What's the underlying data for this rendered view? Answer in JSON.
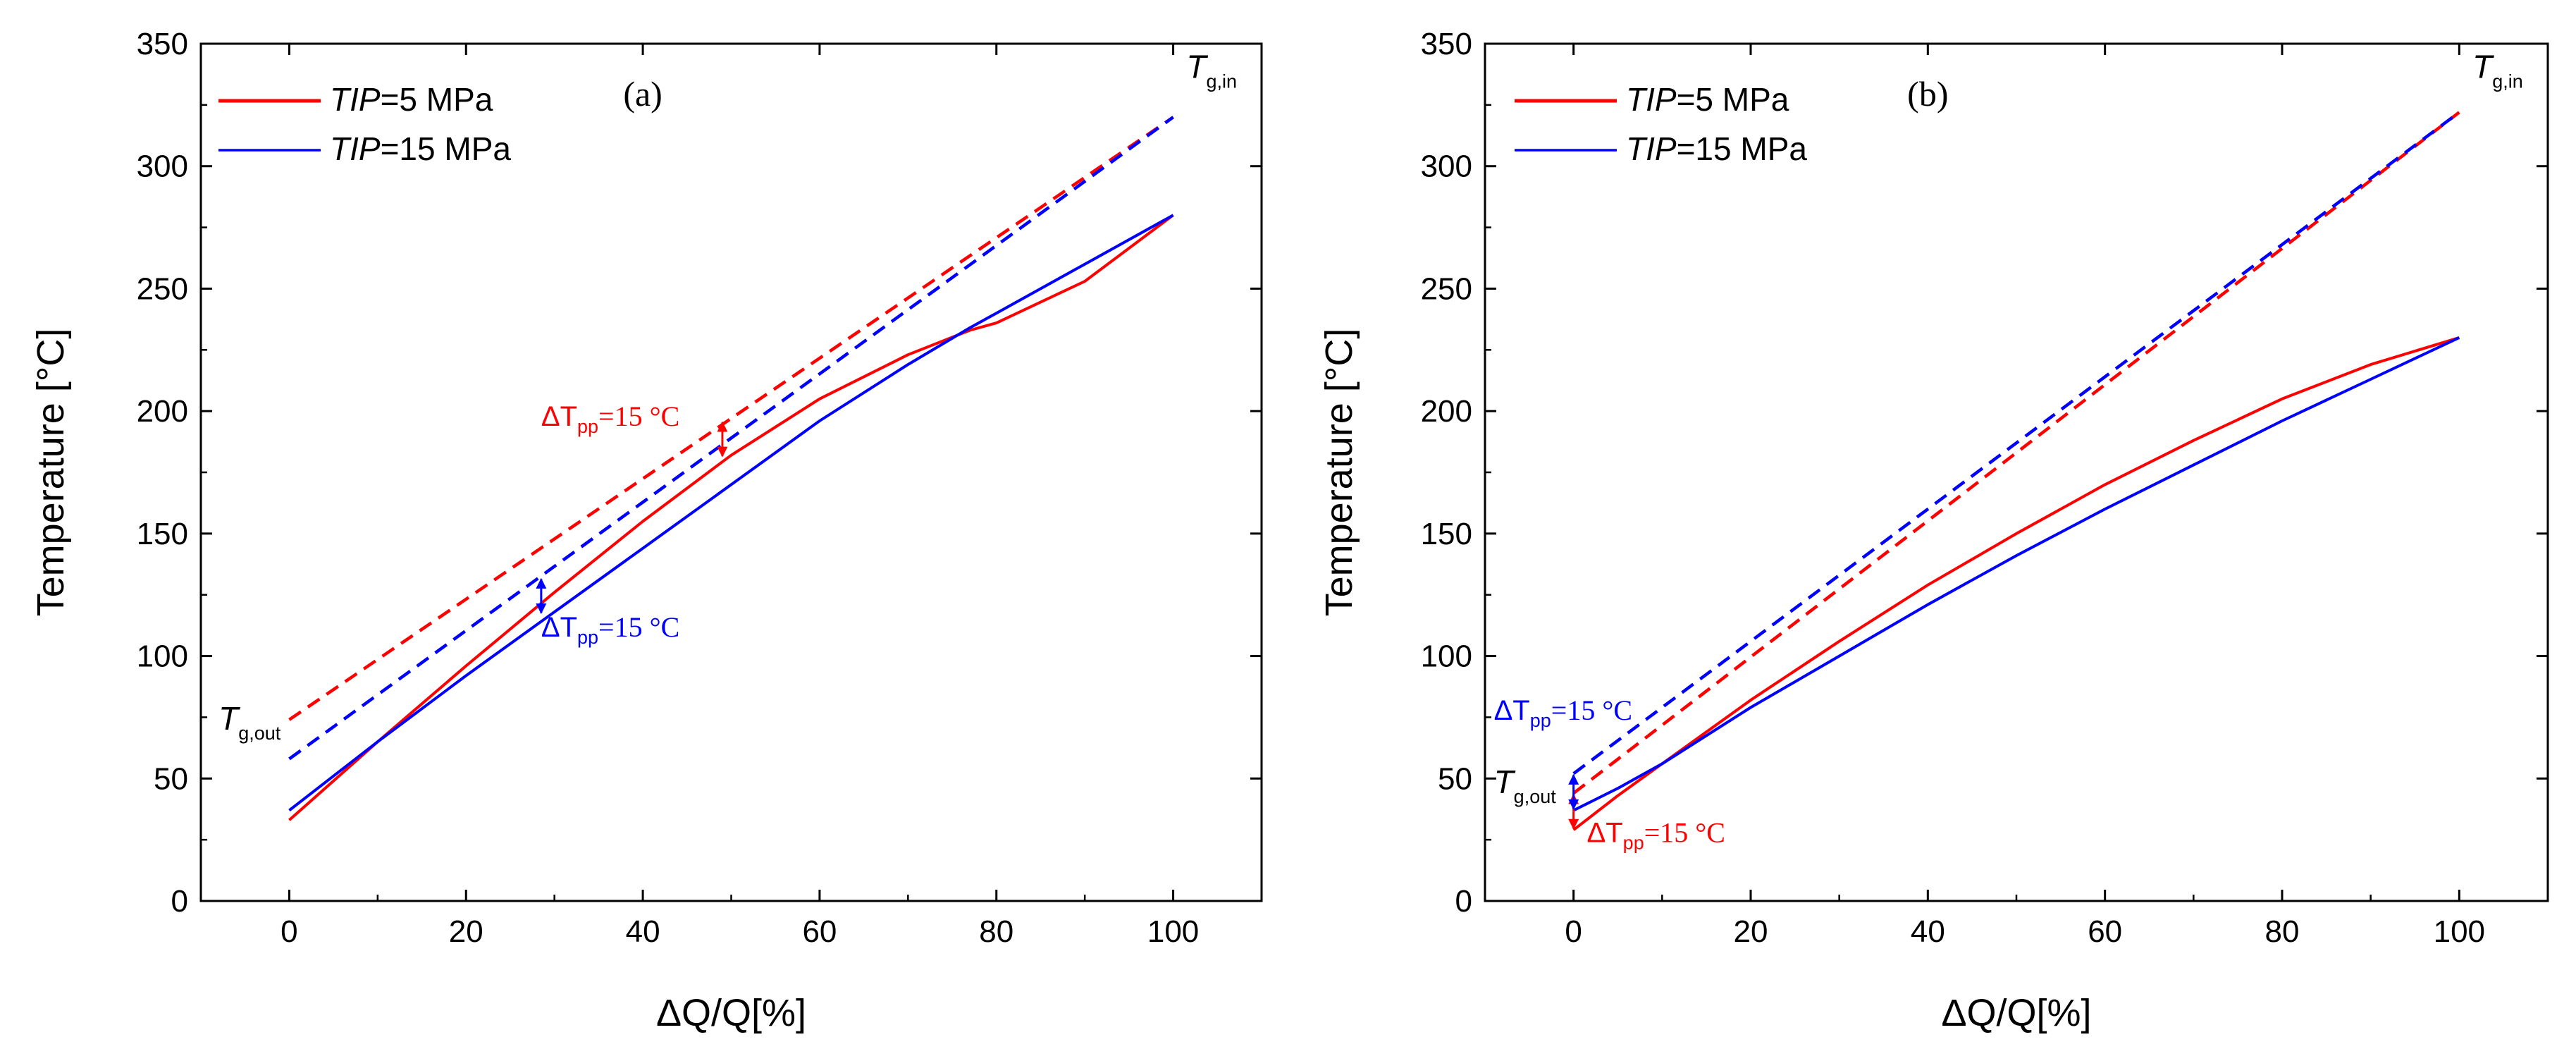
{
  "chart_data": [
    {
      "type": "line",
      "panel_label": "(a)",
      "xlabel": "ΔQ/Q[%]",
      "ylabel": "Temperature [°C]",
      "xlim": [
        -10,
        110
      ],
      "ylim": [
        0,
        350
      ],
      "x_ticks": [
        0,
        20,
        40,
        60,
        80,
        100
      ],
      "y_ticks": [
        0,
        50,
        100,
        150,
        200,
        250,
        300,
        350
      ],
      "legend": [
        {
          "italic": "TIP",
          "rest": "=5 MPa",
          "color": "#ff0000"
        },
        {
          "italic": "TIP",
          "rest": "=15 MPa",
          "color": "#0000ff"
        }
      ],
      "series": [
        {
          "name": "TIP=5 MPa working fluid",
          "color": "#ff0000",
          "style": "solid",
          "x": [
            0,
            5,
            10,
            20,
            30,
            40,
            50,
            60,
            70,
            77,
            80,
            90,
            100
          ],
          "y": [
            33,
            49,
            65,
            96,
            126,
            155,
            182,
            205,
            223,
            233,
            236,
            253,
            280
          ]
        },
        {
          "name": "TIP=15 MPa working fluid",
          "color": "#0000ff",
          "style": "solid",
          "x": [
            0,
            5,
            10,
            20,
            30,
            40,
            50,
            60,
            70,
            77,
            80,
            90,
            100
          ],
          "y": [
            37,
            51,
            65,
            92,
            118,
            144,
            170,
            196,
            219,
            234,
            240,
            260,
            280
          ]
        },
        {
          "name": "TIP=5 MPa gas",
          "color": "#ff0000",
          "style": "dashed",
          "x": [
            0,
            100
          ],
          "y": [
            74,
            320
          ]
        },
        {
          "name": "TIP=15 MPa gas",
          "color": "#0000ff",
          "style": "dashed",
          "x": [
            0,
            100
          ],
          "y": [
            58,
            320
          ]
        }
      ],
      "annotations": {
        "t_in": {
          "main": "T",
          "sub": "g,in"
        },
        "t_out": {
          "main": "T",
          "sub": "g,out"
        },
        "pinch_red": {
          "delta": "ΔT",
          "sub": "pp",
          "value": "=15 °C",
          "color": "#ff0000",
          "x": 49,
          "y_top": 196,
          "y_bottom": 181
        },
        "pinch_blue": {
          "delta": "ΔT",
          "sub": "pp",
          "value": "=15 °C",
          "color": "#0000ff",
          "x": 28.5,
          "y_top": 132,
          "y_bottom": 117
        }
      }
    },
    {
      "type": "line",
      "panel_label": "(b)",
      "xlabel": "ΔQ/Q[%]",
      "ylabel": "Temperature [°C]",
      "xlim": [
        -10,
        110
      ],
      "ylim": [
        0,
        350
      ],
      "x_ticks": [
        0,
        20,
        40,
        60,
        80,
        100
      ],
      "y_ticks": [
        0,
        50,
        100,
        150,
        200,
        250,
        300,
        350
      ],
      "legend": [
        {
          "italic": "TIP",
          "rest": "=5 MPa",
          "color": "#ff0000"
        },
        {
          "italic": "TIP",
          "rest": "=15 MPa",
          "color": "#0000ff"
        }
      ],
      "series": [
        {
          "name": "TIP=5 MPa working fluid",
          "color": "#ff0000",
          "style": "solid",
          "x": [
            0,
            5,
            10,
            20,
            30,
            40,
            50,
            60,
            70,
            80,
            90,
            100
          ],
          "y": [
            29,
            43,
            56,
            82,
            106,
            129,
            150,
            170,
            188,
            205,
            219,
            230
          ]
        },
        {
          "name": "TIP=15 MPa working fluid",
          "color": "#0000ff",
          "style": "solid",
          "x": [
            0,
            5,
            10,
            20,
            30,
            40,
            50,
            60,
            70,
            80,
            90,
            100
          ],
          "y": [
            37,
            46,
            56,
            79,
            100,
            121,
            141,
            160,
            178,
            196,
            213,
            230
          ]
        },
        {
          "name": "TIP=5 MPa gas",
          "color": "#ff0000",
          "style": "dashed",
          "x": [
            0,
            100
          ],
          "y": [
            44,
            322
          ]
        },
        {
          "name": "TIP=15 MPa gas",
          "color": "#0000ff",
          "style": "dashed",
          "x": [
            0,
            100
          ],
          "y": [
            52,
            322
          ]
        }
      ],
      "annotations": {
        "t_in": {
          "main": "T",
          "sub": "g,in"
        },
        "t_out": {
          "main": "T",
          "sub": "g,out"
        },
        "pinch_red": {
          "delta": "ΔT",
          "sub": "pp",
          "value": "=15 °C",
          "color": "#ff0000",
          "x": 0,
          "y_top": 44,
          "y_bottom": 29
        },
        "pinch_blue": {
          "delta": "ΔT",
          "sub": "pp",
          "value": "=15 °C",
          "color": "#0000ff",
          "x": 0,
          "y_top": 52,
          "y_bottom": 37
        }
      }
    }
  ]
}
